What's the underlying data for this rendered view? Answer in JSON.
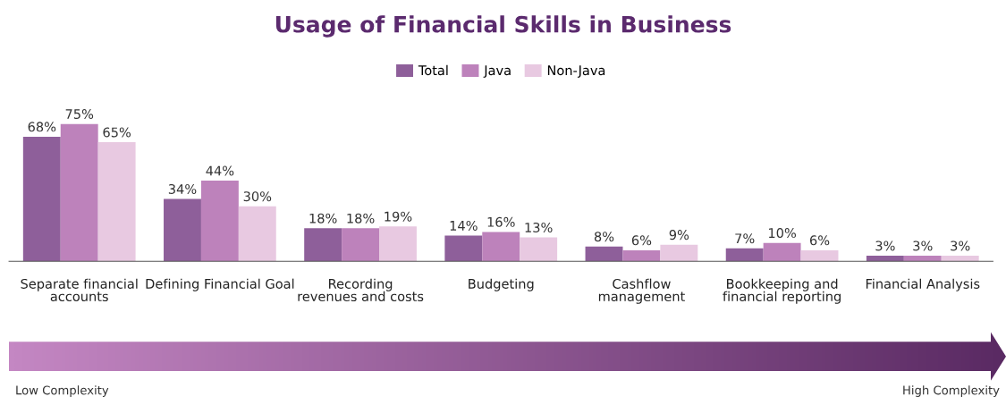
{
  "chart_data": {
    "type": "bar",
    "title": "Usage of Financial Skills in Business",
    "categories": [
      "Separate financial\naccounts",
      "Defining Financial Goal",
      "Recording\nrevenues and costs",
      "Budgeting",
      "Cashflow\nmanagement",
      "Bookkeeping and\nfinancial reporting",
      "Financial Analysis"
    ],
    "series": [
      {
        "name": "Total",
        "color": "#8e5f9a",
        "values": [
          68,
          34,
          18,
          14,
          8,
          7,
          3
        ],
        "value_labels": [
          "68%",
          "34%",
          "18%",
          "14%",
          "8%",
          "7%",
          "3%"
        ]
      },
      {
        "name": "Java",
        "color": "#bd82bb",
        "values": [
          75,
          44,
          18,
          16,
          6,
          10,
          3
        ],
        "value_labels": [
          "75%",
          "44%",
          "18%",
          "16%",
          "6%",
          "10%",
          "3%"
        ]
      },
      {
        "name": "Non-Java",
        "color": "#e8c9e1",
        "values": [
          65,
          30,
          19,
          13,
          9,
          6,
          3
        ],
        "value_labels": [
          "65%",
          "30%",
          "19%",
          "13%",
          "9%",
          "6%",
          "3%"
        ]
      }
    ],
    "legend": "top",
    "grid": false,
    "annotations": [
      "Low Complexity",
      "High Complexity"
    ]
  }
}
